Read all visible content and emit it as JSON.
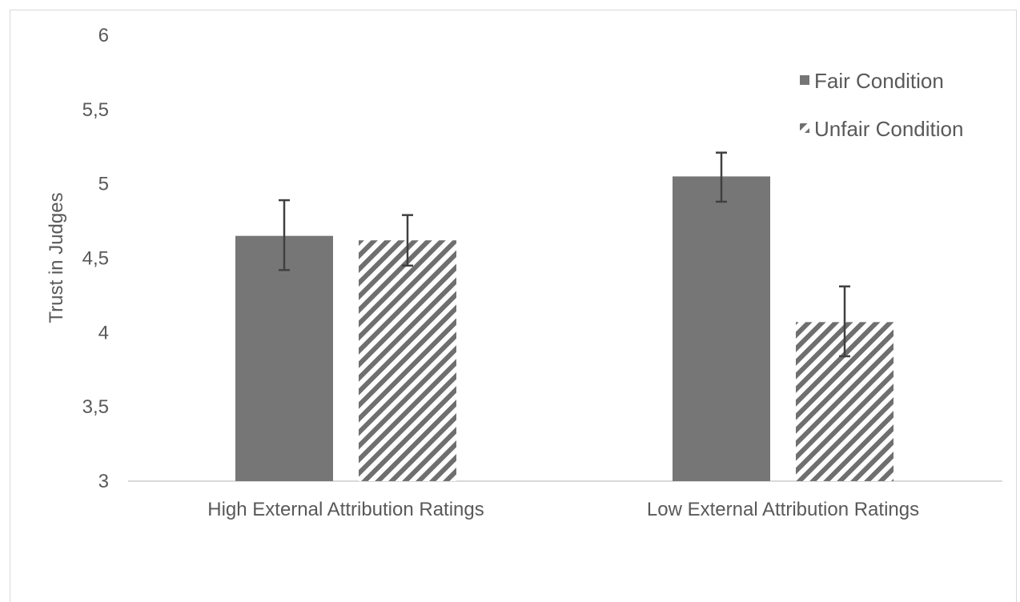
{
  "chart_data": {
    "type": "bar",
    "title": "",
    "xlabel": "",
    "ylabel": "Trust in Judges",
    "ylim": [
      3,
      6
    ],
    "yticks": [
      "3",
      "3,5",
      "4",
      "4,5",
      "5",
      "5,5",
      "6"
    ],
    "ytick_values": [
      3,
      3.5,
      4,
      4.5,
      5,
      5.5,
      6
    ],
    "categories": [
      "High External Attribution Ratings",
      "Low External Attribution Ratings"
    ],
    "series": [
      {
        "name": "Fair Condition",
        "values": [
          4.65,
          5.05
        ],
        "error_low": [
          4.42,
          4.88
        ],
        "error_high": [
          4.89,
          5.21
        ],
        "fill": "solid",
        "color": "#767676"
      },
      {
        "name": "Unfair Condition",
        "values": [
          4.62,
          4.07
        ],
        "error_low": [
          4.45,
          3.84
        ],
        "error_high": [
          4.79,
          4.31
        ],
        "fill": "diagonal-hatch",
        "color": "#767676"
      }
    ],
    "legend_position": "top-right",
    "grid": false
  }
}
